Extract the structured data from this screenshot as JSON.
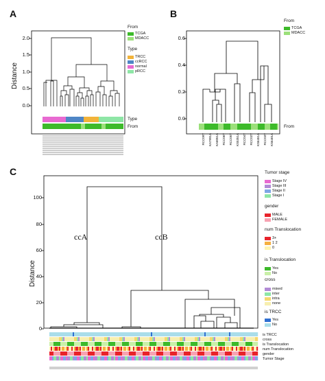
{
  "panels": {
    "a": {
      "letter": "A",
      "ylabel": "Distance",
      "yticks": [
        "2.0",
        "1.5",
        "1.0",
        "0.5",
        "0.0"
      ],
      "legend_from_title": "From",
      "legend_from_items": [
        {
          "label": "TCGA",
          "color": "#3dba2a"
        },
        {
          "label": "MDACC",
          "color": "#9be07a"
        }
      ],
      "legend_type_title": "Type",
      "legend_type_items": [
        {
          "label": "TRCC",
          "color": "#f2b33a"
        },
        {
          "label": "ccRCC",
          "color": "#4f86c6"
        },
        {
          "label": "normal",
          "color": "#e86ad1"
        },
        {
          "label": "pRCC",
          "color": "#8ee6a6"
        }
      ],
      "bar_labels": [
        "Type",
        "From"
      ]
    },
    "b": {
      "letter": "B",
      "yticks": [
        "0.6",
        "0.4",
        "0.2",
        "0.0"
      ],
      "legend_from_title": "From",
      "legend_from_items": [
        {
          "label": "TCGA",
          "color": "#3dba2a"
        },
        {
          "label": "MDACC",
          "color": "#9be07a"
        }
      ],
      "bar_label": "From",
      "leaf_labels": [
        "RCC09T",
        "KA7991A",
        "KA6051A",
        "RCC06T",
        "RCC05T",
        "KS5351A",
        "RCC04T",
        "RCC02T",
        "KS6451A",
        "RCC03T",
        "KS6401A"
      ]
    },
    "c": {
      "letter": "C",
      "ylabel": "Distance",
      "yticks": [
        "100",
        "80",
        "60",
        "40",
        "20",
        "0"
      ],
      "cluster_labels": [
        "ccA",
        "ccB"
      ],
      "legend_tumor_title": "Tumor stage",
      "legend_tumor_items": [
        {
          "label": "Stage IV",
          "color": "#e86ad1"
        },
        {
          "label": "Stage III",
          "color": "#b28bd6"
        },
        {
          "label": "Stage II",
          "color": "#7fa6e6"
        },
        {
          "label": "Stage I",
          "color": "#8ee6a6"
        }
      ],
      "legend_gender_title": "gender",
      "legend_gender_items": [
        {
          "label": "MALE",
          "color": "#e8232b"
        },
        {
          "label": "FEMALE",
          "color": "#f7a2b2"
        }
      ],
      "legend_num_title": "num Translocation",
      "legend_num_items": [
        {
          "label": "3+",
          "color": "#e8232b"
        },
        {
          "label": "1 2",
          "color": "#f5b041"
        },
        {
          "label": "0",
          "color": "#fff4b0"
        }
      ],
      "legend_is_title": "is Translocation",
      "legend_is_items": [
        {
          "label": "Yes",
          "color": "#3dba2a"
        },
        {
          "label": "No",
          "color": "#c9f0a8"
        }
      ],
      "legend_cross_title": "cross",
      "legend_cross_items": [
        {
          "label": "mixed",
          "color": "#b28bd6"
        },
        {
          "label": "inter",
          "color": "#8ee6a6"
        },
        {
          "label": "intra",
          "color": "#f5d76e"
        },
        {
          "label": "none",
          "color": "#f7efb0"
        }
      ],
      "legend_trcc_title": "is TRCC",
      "legend_trcc_items": [
        {
          "label": "Yes",
          "color": "#2f6fd1"
        },
        {
          "label": "No",
          "color": "#a9ddea"
        }
      ],
      "bar_labels": [
        "is TRCC",
        "cross",
        "is Translocation",
        "num Translocation",
        "gender",
        "Tumor Stage"
      ]
    }
  }
}
